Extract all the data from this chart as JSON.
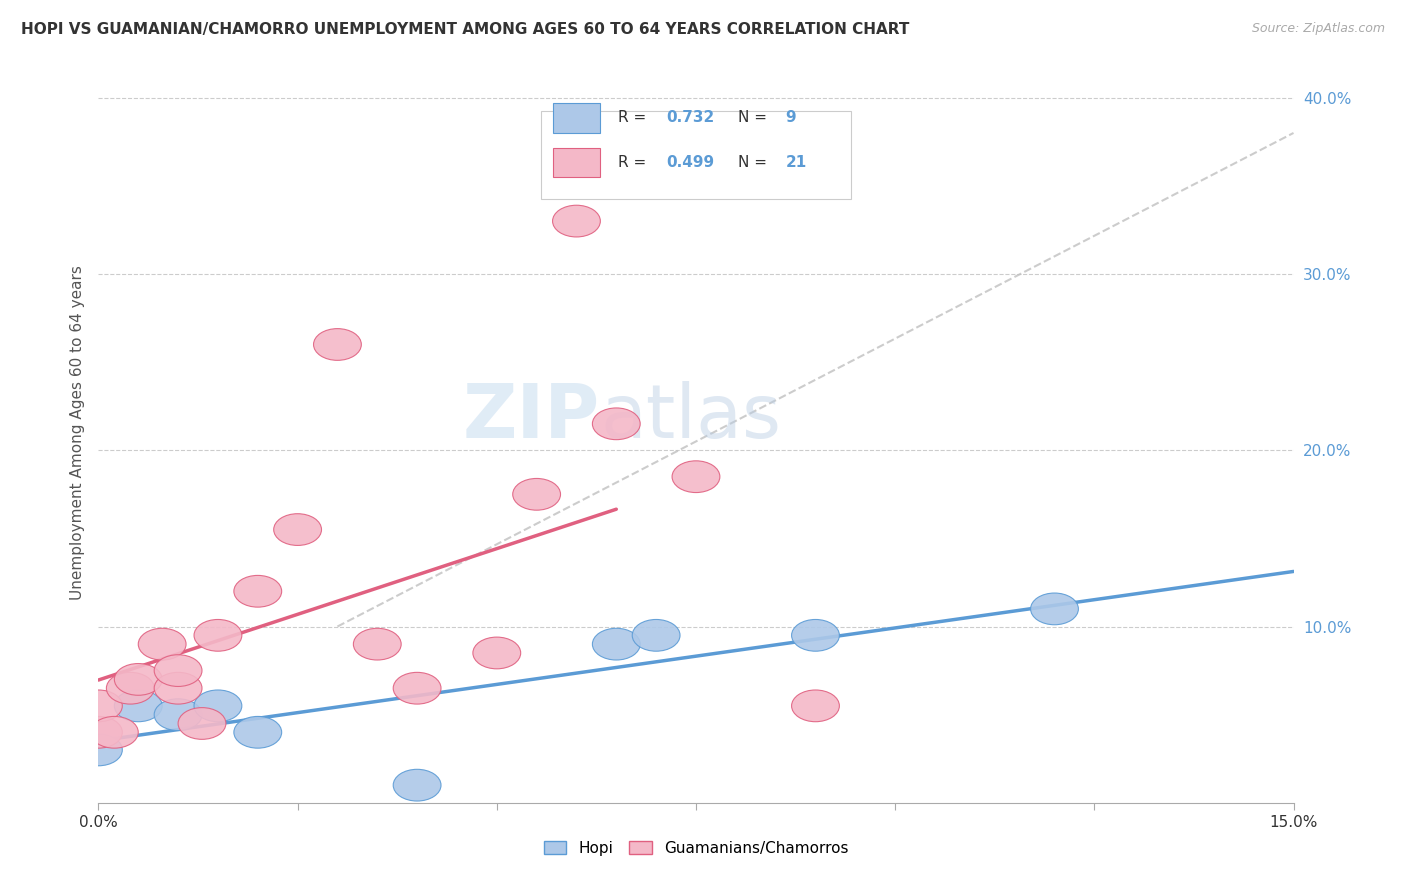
{
  "title": "HOPI VS GUAMANIAN/CHAMORRO UNEMPLOYMENT AMONG AGES 60 TO 64 YEARS CORRELATION CHART",
  "source": "Source: ZipAtlas.com",
  "ylabel": "Unemployment Among Ages 60 to 64 years",
  "xlim": [
    0.0,
    0.15
  ],
  "ylim": [
    0.0,
    0.42
  ],
  "hopi_color": "#adc8e8",
  "hopi_line_color": "#5b9bd5",
  "guam_color": "#f4b8c8",
  "guam_line_color": "#e06080",
  "background_color": "#ffffff",
  "watermark_zip": "ZIP",
  "watermark_atlas": "atlas",
  "hopi_x": [
    0.0,
    0.005,
    0.01,
    0.015,
    0.02,
    0.04,
    0.065,
    0.07,
    0.09,
    0.12
  ],
  "hopi_y": [
    0.03,
    0.055,
    0.05,
    0.055,
    0.04,
    0.01,
    0.09,
    0.095,
    0.095,
    0.11
  ],
  "guam_x": [
    0.0,
    0.0,
    0.002,
    0.004,
    0.005,
    0.008,
    0.01,
    0.01,
    0.013,
    0.015,
    0.02,
    0.025,
    0.03,
    0.035,
    0.04,
    0.05,
    0.055,
    0.06,
    0.065,
    0.075,
    0.09
  ],
  "guam_y": [
    0.04,
    0.055,
    0.04,
    0.065,
    0.07,
    0.09,
    0.065,
    0.075,
    0.045,
    0.095,
    0.12,
    0.155,
    0.26,
    0.09,
    0.065,
    0.085,
    0.175,
    0.33,
    0.215,
    0.185,
    0.055
  ]
}
